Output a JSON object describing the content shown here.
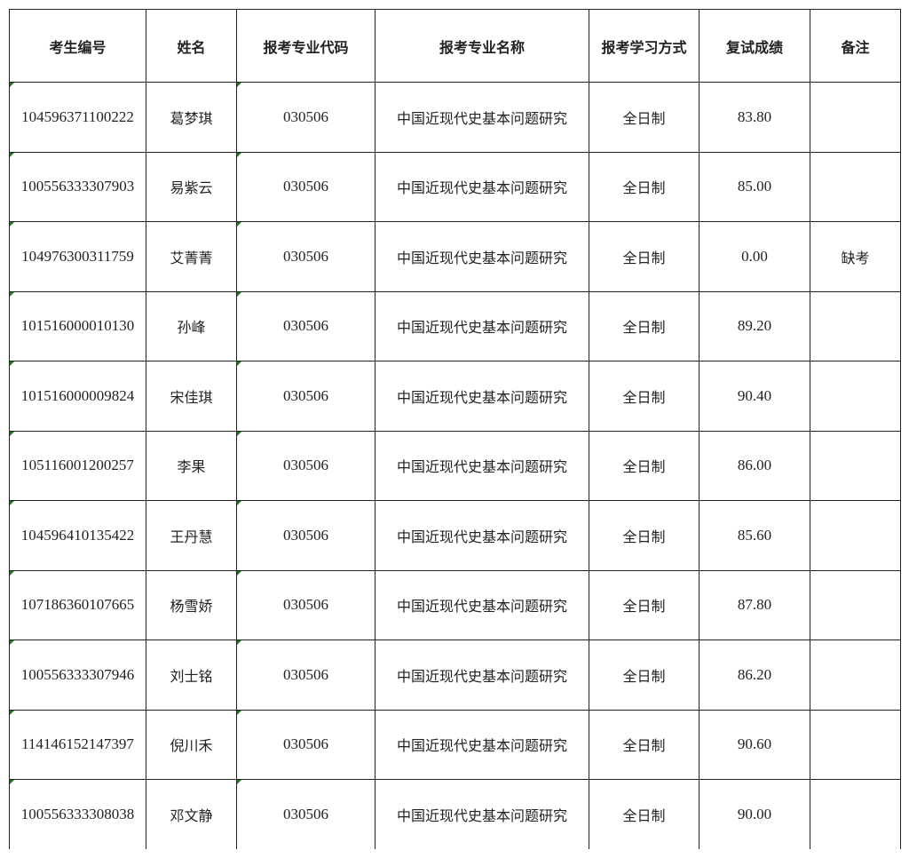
{
  "table": {
    "headers": [
      "考生编号",
      "姓名",
      "报考专业代码",
      "报考专业名称",
      "报考学习方式",
      "复试成绩",
      "备注"
    ],
    "rows": [
      [
        "104596371100222",
        "葛梦琪",
        "030506",
        "中国近现代史基本问题研究",
        "全日制",
        "83.80",
        ""
      ],
      [
        "100556333307903",
        "易紫云",
        "030506",
        "中国近现代史基本问题研究",
        "全日制",
        "85.00",
        ""
      ],
      [
        "104976300311759",
        "艾菁菁",
        "030506",
        "中国近现代史基本问题研究",
        "全日制",
        "0.00",
        "缺考"
      ],
      [
        "101516000010130",
        "孙峰",
        "030506",
        "中国近现代史基本问题研究",
        "全日制",
        "89.20",
        ""
      ],
      [
        "101516000009824",
        "宋佳琪",
        "030506",
        "中国近现代史基本问题研究",
        "全日制",
        "90.40",
        ""
      ],
      [
        "105116001200257",
        "李果",
        "030506",
        "中国近现代史基本问题研究",
        "全日制",
        "86.00",
        ""
      ],
      [
        "104596410135422",
        "王丹慧",
        "030506",
        "中国近现代史基本问题研究",
        "全日制",
        "85.60",
        ""
      ],
      [
        "107186360107665",
        "杨雪娇",
        "030506",
        "中国近现代史基本问题研究",
        "全日制",
        "87.80",
        ""
      ],
      [
        "100556333307946",
        "刘士铭",
        "030506",
        "中国近现代史基本问题研究",
        "全日制",
        "86.20",
        ""
      ],
      [
        "114146152147397",
        "倪川禾",
        "030506",
        "中国近现代史基本问题研究",
        "全日制",
        "90.60",
        ""
      ],
      [
        "100556333308038",
        "邓文静",
        "030506",
        "中国近现代史基本问题研究",
        "全日制",
        "90.00",
        ""
      ]
    ]
  }
}
